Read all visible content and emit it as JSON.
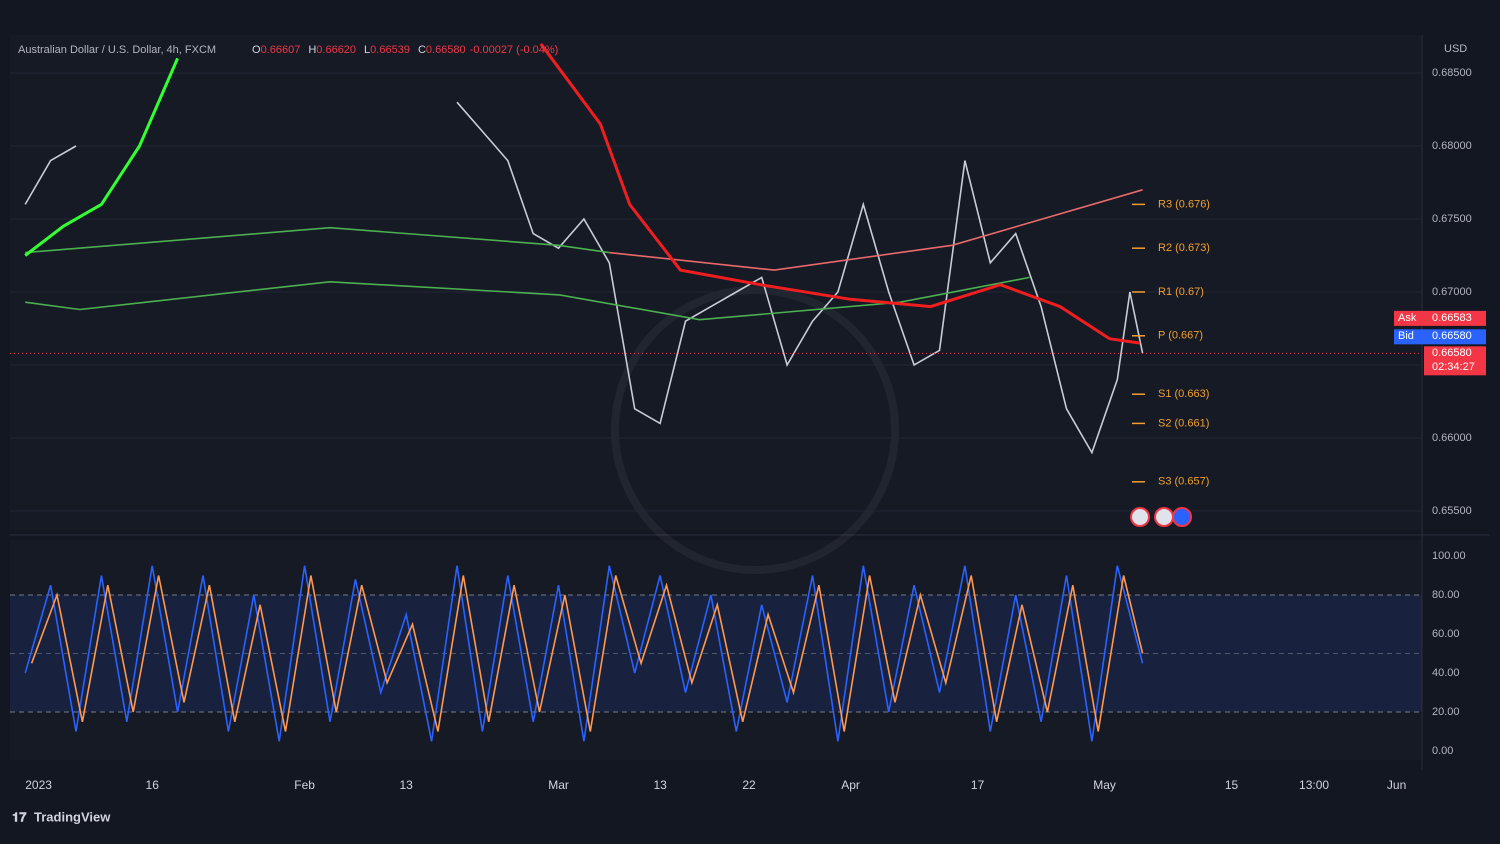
{
  "chart_data": [
    {
      "type": "line",
      "title": "Australian Dollar / U.S. Dollar, 4h, FXCM",
      "ohlc": [
        {
          "label": "O",
          "value": "0.66607"
        },
        {
          "label": "H",
          "value": "0.66620"
        },
        {
          "label": "L",
          "value": "0.66539"
        },
        {
          "label": "C",
          "value": "0.66580"
        }
      ],
      "change": "-0.00027 (-0.04%)",
      "currency": "USD",
      "xlim": [
        -1.2,
        110
      ],
      "ylim": [
        0.6537,
        0.6876
      ],
      "yticks": [
        {
          "value": 0.685,
          "label": "0.68500"
        },
        {
          "value": 0.68,
          "label": "0.68000"
        },
        {
          "value": 0.675,
          "label": "0.67500"
        },
        {
          "value": 0.67,
          "label": "0.67000"
        },
        {
          "value": 0.665,
          "label": "0.66500"
        },
        {
          "value": 0.66,
          "label": "0.66000"
        },
        {
          "value": 0.655,
          "label": "0.65500"
        }
      ],
      "grid": true,
      "series": [
        {
          "color": "#c8ccd6",
          "x": [
            0,
            2,
            4,
            6,
            8,
            10,
            12,
            14,
            16,
            18,
            20,
            22,
            24,
            26,
            28,
            30,
            32,
            34,
            36,
            38,
            40,
            42,
            44,
            46,
            48,
            50,
            52,
            54,
            56,
            58,
            60,
            62,
            64,
            66,
            68,
            70,
            72,
            74,
            76,
            78,
            80,
            82,
            84,
            86,
            87,
            88
          ],
          "values": [
            0.676,
            0.679,
            0.68,
            null,
            null,
            null,
            null,
            null,
            null,
            null,
            null,
            null,
            null,
            null,
            null,
            null,
            null,
            0.683,
            0.681,
            0.679,
            0.674,
            0.673,
            0.675,
            0.672,
            0.662,
            0.661,
            0.668,
            0.669,
            0.67,
            0.671,
            0.665,
            0.668,
            0.67,
            0.676,
            0.67,
            0.665,
            0.666,
            0.679,
            0.672,
            0.674,
            0.669,
            0.662,
            0.659,
            0.664,
            0.67,
            0.6658
          ]
        },
        {
          "color": "#4caf50",
          "x": [
            0,
            4.3,
            24,
            42.1,
            53.1,
            68.9,
            79.1
          ],
          "values": [
            0.6693,
            0.6688,
            0.6707,
            0.6698,
            0.6681,
            0.6693,
            0.671
          ]
        },
        {
          "color": "#4caf50",
          "x": [
            0,
            24,
            42,
            46
          ],
          "values": [
            0.6727,
            0.6744,
            0.6732,
            0.6727
          ]
        },
        {
          "color": "#e86a6a",
          "x": [
            46,
            59,
            73,
            88
          ],
          "values": [
            0.6727,
            0.6715,
            0.6732,
            0.677
          ]
        },
        {
          "color": "#33ff33",
          "x": [
            0,
            3,
            6,
            9,
            12
          ],
          "values": [
            0.6725,
            0.6745,
            0.676,
            0.68,
            0.686
          ]
        },
        {
          "color": "#f01e1e",
          "x": [
            40.6,
            45.3,
            47.6,
            51.6,
            57.9,
            65,
            71.3,
            76.8,
            81.5,
            85.4,
            87.8
          ],
          "values": [
            0.687,
            0.6815,
            0.676,
            0.6715,
            0.6705,
            0.6695,
            0.669,
            0.6705,
            0.669,
            0.6668,
            0.6665
          ]
        }
      ],
      "pivots": {
        "color": "#f0a030",
        "levels": [
          {
            "label": "R3 (0.676)",
            "value": 0.676
          },
          {
            "label": "R2 (0.673)",
            "value": 0.673
          },
          {
            "label": "R1 (0.67)",
            "value": 0.67
          },
          {
            "label": "P (0.667)",
            "value": 0.667
          },
          {
            "label": "S1 (0.663)",
            "value": 0.663
          },
          {
            "label": "S2 (0.661)",
            "value": 0.661
          },
          {
            "label": "S3 (0.657)",
            "value": 0.657
          }
        ]
      },
      "price_labels": [
        {
          "label": "Ask",
          "value": 0.66583,
          "value_label": "0.66583",
          "color": "#f23645"
        },
        {
          "label": "Bid",
          "value": 0.6658,
          "value_label": "0.66580",
          "color": "#2962ff"
        }
      ],
      "last_price": {
        "value": 0.6658,
        "value_label": "0.66580",
        "countdown": "02:34:27",
        "color": "#f23645"
      }
    },
    {
      "type": "line",
      "xlim": [
        -1.2,
        110
      ],
      "ylim": [
        -4.6,
        108.2
      ],
      "yticks": [
        {
          "value": 100,
          "label": "100.00"
        },
        {
          "value": 80,
          "label": "80.00"
        },
        {
          "value": 60,
          "label": "60.00"
        },
        {
          "value": 40,
          "label": "40.00"
        },
        {
          "value": 20,
          "label": "20.00"
        },
        {
          "value": 0,
          "label": "0.00"
        }
      ],
      "bands": [
        20,
        80
      ],
      "midline": 50,
      "xticks": [
        {
          "value": 0,
          "label": "2023"
        },
        {
          "value": 10,
          "label": "16"
        },
        {
          "value": 22,
          "label": "Feb"
        },
        {
          "value": 30,
          "label": "13"
        },
        {
          "value": 42,
          "label": "Mar"
        },
        {
          "value": 50,
          "label": "13"
        },
        {
          "value": 57,
          "label": "22"
        },
        {
          "value": 65,
          "label": "Apr"
        },
        {
          "value": 75,
          "label": "17"
        },
        {
          "value": 85,
          "label": "May"
        },
        {
          "value": 95,
          "label": "15"
        },
        {
          "value": 101.5,
          "label": "13:00"
        },
        {
          "value": 108,
          "label": "Jun"
        }
      ],
      "series": [
        {
          "color": "#2962ff",
          "x": [
            0,
            2,
            4,
            6,
            8,
            10,
            12,
            14,
            16,
            18,
            20,
            22,
            24,
            26,
            28,
            30,
            32,
            34,
            36,
            38,
            40,
            42,
            44,
            46,
            48,
            50,
            52,
            54,
            56,
            58,
            60,
            62,
            64,
            66,
            68,
            70,
            72,
            74,
            76,
            78,
            80,
            82,
            84,
            86,
            88
          ],
          "values": [
            40,
            85,
            10,
            90,
            15,
            95,
            20,
            90,
            10,
            80,
            5,
            95,
            15,
            88,
            30,
            70,
            5,
            95,
            10,
            90,
            15,
            85,
            5,
            95,
            40,
            90,
            30,
            80,
            10,
            75,
            25,
            90,
            5,
            95,
            20,
            85,
            30,
            95,
            10,
            80,
            15,
            90,
            5,
            95,
            45
          ]
        },
        {
          "color": "#ff9850",
          "x": [
            0.5,
            2.5,
            4.5,
            6.5,
            8.5,
            10.5,
            12.5,
            14.5,
            16.5,
            18.5,
            20.5,
            22.5,
            24.5,
            26.5,
            28.5,
            30.5,
            32.5,
            34.5,
            36.5,
            38.5,
            40.5,
            42.5,
            44.5,
            46.5,
            48.5,
            50.5,
            52.5,
            54.5,
            56.5,
            58.5,
            60.5,
            62.5,
            64.5,
            66.5,
            68.5,
            70.5,
            72.5,
            74.5,
            76.5,
            78.5,
            80.5,
            82.5,
            84.5,
            86.5,
            88
          ],
          "values": [
            45,
            80,
            15,
            85,
            20,
            90,
            25,
            85,
            15,
            75,
            10,
            90,
            20,
            85,
            35,
            65,
            10,
            90,
            15,
            85,
            20,
            80,
            10,
            90,
            45,
            85,
            35,
            75,
            15,
            70,
            30,
            85,
            10,
            90,
            25,
            80,
            35,
            90,
            15,
            75,
            20,
            85,
            10,
            90,
            50
          ]
        }
      ]
    }
  ],
  "footer": {
    "brand": "TradingView"
  }
}
